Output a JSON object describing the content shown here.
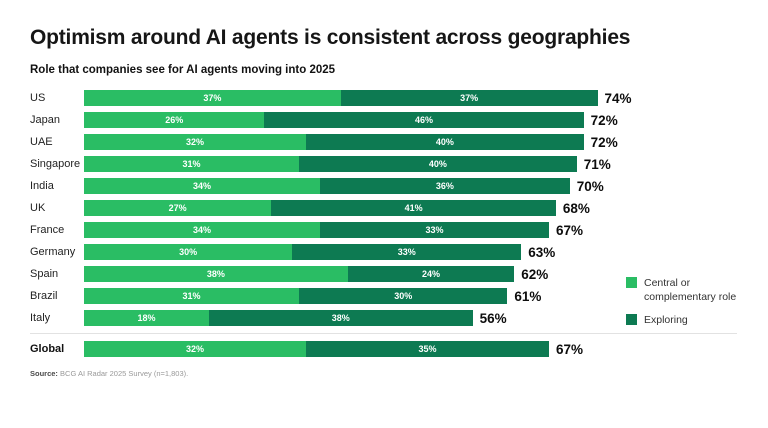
{
  "title": "Optimism around AI agents is consistent across geographies",
  "subtitle": "Role that companies see for AI agents moving into 2025",
  "source": {
    "label": "Source:",
    "text": " BCG AI Radar 2025 Survey (n=1,803)."
  },
  "colors": {
    "central": "#2abd64",
    "exploring": "#0d7a52"
  },
  "legend": [
    {
      "name": "central",
      "label": "Central or complementary role",
      "color": "#2abd64"
    },
    {
      "name": "exploring",
      "label": "Exploring",
      "color": "#0d7a52"
    }
  ],
  "chart_data": {
    "type": "bar",
    "orientation": "horizontal",
    "stacked": true,
    "unit": "%",
    "xlim": [
      0,
      100
    ],
    "grid": false,
    "legend_position": "right",
    "categories": [
      "US",
      "Japan",
      "UAE",
      "Singapore",
      "India",
      "UK",
      "France",
      "Germany",
      "Spain",
      "Brazil",
      "Italy",
      "Global"
    ],
    "series": [
      {
        "name": "Central or complementary role",
        "values": [
          37,
          26,
          32,
          31,
          34,
          27,
          34,
          30,
          38,
          31,
          18,
          32
        ]
      },
      {
        "name": "Exploring",
        "values": [
          37,
          46,
          40,
          40,
          36,
          41,
          33,
          33,
          24,
          30,
          38,
          35
        ]
      }
    ],
    "totals": [
      74,
      72,
      72,
      71,
      70,
      68,
      67,
      63,
      62,
      61,
      56,
      67
    ],
    "summary_row": "Global"
  }
}
